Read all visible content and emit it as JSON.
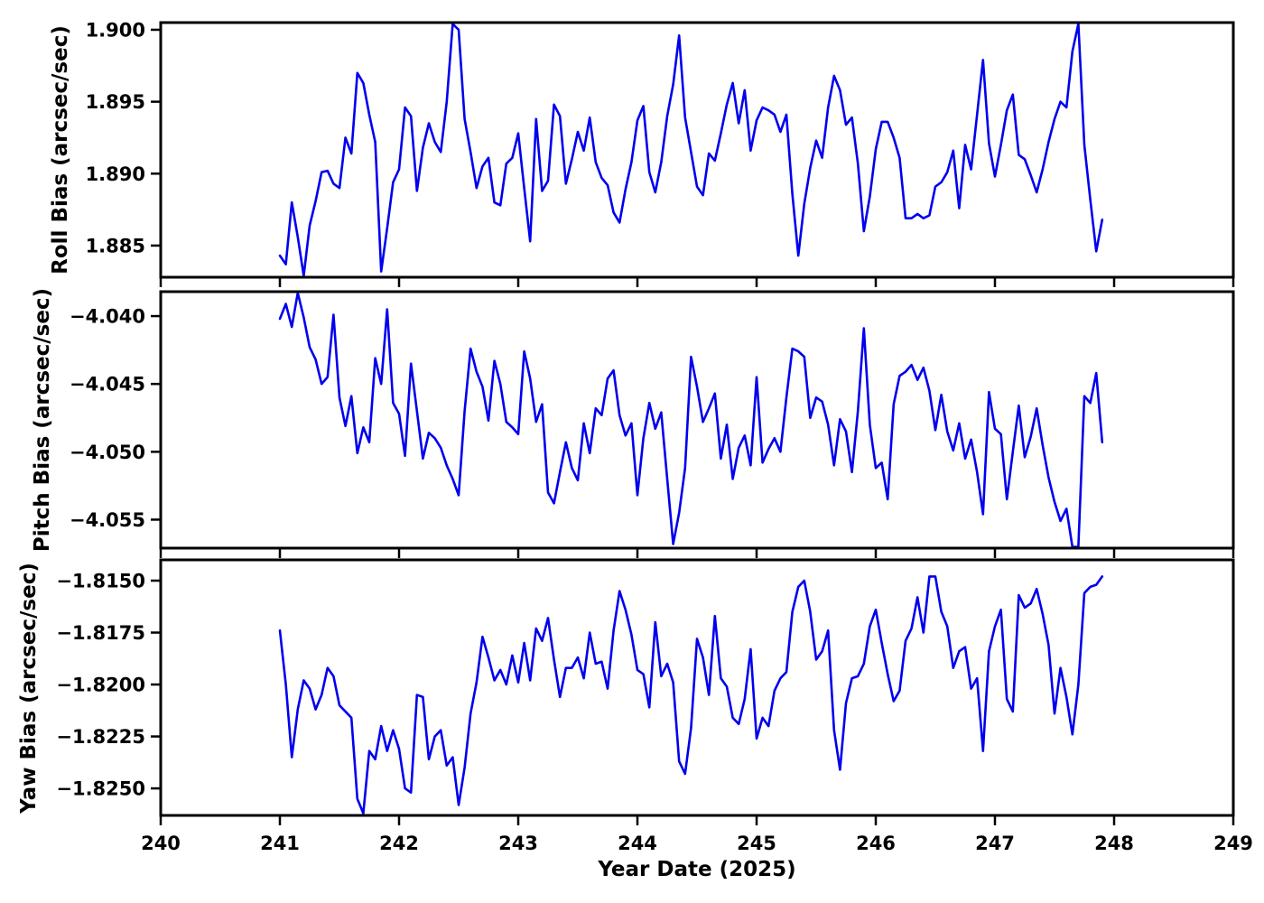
{
  "colors": {
    "line": "#0000ee",
    "axis": "#000000",
    "background": "#ffffff"
  },
  "x_axis": {
    "label": "Year Date (2025)",
    "xlim": [
      240,
      249
    ],
    "ticks": [
      240,
      241,
      242,
      243,
      244,
      245,
      246,
      247,
      248,
      249
    ],
    "tick_labels": [
      "240",
      "241",
      "242",
      "243",
      "244",
      "245",
      "246",
      "247",
      "248",
      "249"
    ]
  },
  "chart_data": [
    {
      "type": "line",
      "name": "roll-bias",
      "ylabel": "Roll Bias (arcsec/sec)",
      "ylim": [
        1.8828,
        1.9005
      ],
      "yticks": [
        1.885,
        1.89,
        1.895,
        1.9
      ],
      "ytick_labels": [
        "1.885",
        "1.890",
        "1.895",
        "1.900"
      ],
      "x_start": 241.0,
      "x_step": 0.05,
      "values": [
        1.8843,
        1.8837,
        1.888,
        1.8856,
        1.8829,
        1.8864,
        1.8881,
        1.8901,
        1.8902,
        1.8893,
        1.889,
        1.8925,
        1.8914,
        1.897,
        1.8963,
        1.8941,
        1.8922,
        1.8832,
        1.8862,
        1.8894,
        1.8903,
        1.8946,
        1.894,
        1.8888,
        1.8918,
        1.8935,
        1.8922,
        1.8915,
        1.895,
        1.9004,
        1.9,
        1.8938,
        1.8915,
        1.889,
        1.8905,
        1.8911,
        1.888,
        1.8878,
        1.8907,
        1.8911,
        1.8928,
        1.889,
        1.8853,
        1.8938,
        1.8888,
        1.8895,
        1.8948,
        1.894,
        1.8893,
        1.891,
        1.8929,
        1.8916,
        1.8939,
        1.8908,
        1.8897,
        1.8892,
        1.8873,
        1.8866,
        1.8889,
        1.8908,
        1.8937,
        1.8947,
        1.8901,
        1.8887,
        1.8908,
        1.894,
        1.8962,
        1.8996,
        1.8939,
        1.8915,
        1.8891,
        1.8885,
        1.8914,
        1.8909,
        1.8928,
        1.8948,
        1.8963,
        1.8935,
        1.8958,
        1.8916,
        1.8937,
        1.8946,
        1.8944,
        1.8941,
        1.8929,
        1.8941,
        1.8886,
        1.8843,
        1.8879,
        1.8904,
        1.8923,
        1.8911,
        1.8946,
        1.8968,
        1.8958,
        1.8934,
        1.8939,
        1.8907,
        1.886,
        1.8884,
        1.8917,
        1.8936,
        1.8936,
        1.8925,
        1.8911,
        1.8869,
        1.8869,
        1.8872,
        1.8869,
        1.8871,
        1.8891,
        1.8894,
        1.8901,
        1.8916,
        1.8876,
        1.892,
        1.8903,
        1.8941,
        1.8979,
        1.8921,
        1.8898,
        1.892,
        1.8944,
        1.8955,
        1.8913,
        1.891,
        1.8899,
        1.8887,
        1.8903,
        1.8922,
        1.8938,
        1.895,
        1.8946,
        1.8985,
        1.9005,
        1.892,
        1.8882,
        1.8846,
        1.8868
      ]
    },
    {
      "type": "line",
      "name": "pitch-bias",
      "ylabel": "Pitch Bias (arcsec/sec)",
      "ylim": [
        -4.0571,
        -4.0382
      ],
      "yticks": [
        -4.055,
        -4.05,
        -4.045,
        -4.04
      ],
      "ytick_labels": [
        "−4.055",
        "−4.050",
        "−4.045",
        "−4.040"
      ],
      "x_start": 241.0,
      "x_step": 0.05,
      "values": [
        -4.0402,
        -4.0391,
        -4.0408,
        -4.0382,
        -4.0401,
        -4.0423,
        -4.0432,
        -4.045,
        -4.0445,
        -4.0399,
        -4.046,
        -4.0481,
        -4.0459,
        -4.0501,
        -4.0482,
        -4.0493,
        -4.0431,
        -4.045,
        -4.0395,
        -4.0464,
        -4.0472,
        -4.0503,
        -4.0435,
        -4.047,
        -4.0505,
        -4.0486,
        -4.049,
        -4.0497,
        -4.051,
        -4.052,
        -4.0532,
        -4.047,
        -4.0424,
        -4.0441,
        -4.0452,
        -4.0477,
        -4.0433,
        -4.045,
        -4.0478,
        -4.0482,
        -4.0487,
        -4.0426,
        -4.0446,
        -4.0478,
        -4.0465,
        -4.053,
        -4.0538,
        -4.0515,
        -4.0493,
        -4.0512,
        -4.0521,
        -4.0479,
        -4.0501,
        -4.0468,
        -4.0473,
        -4.0446,
        -4.044,
        -4.0473,
        -4.0488,
        -4.0479,
        -4.0532,
        -4.049,
        -4.0464,
        -4.0483,
        -4.0471,
        -4.052,
        -4.0568,
        -4.0545,
        -4.0512,
        -4.043,
        -4.0452,
        -4.0478,
        -4.0468,
        -4.0457,
        -4.0505,
        -4.048,
        -4.052,
        -4.0497,
        -4.0488,
        -4.051,
        -4.0445,
        -4.0508,
        -4.0498,
        -4.049,
        -4.05,
        -4.046,
        -4.0424,
        -4.0426,
        -4.043,
        -4.0475,
        -4.046,
        -4.0463,
        -4.048,
        -4.051,
        -4.0476,
        -4.0485,
        -4.0515,
        -4.047,
        -4.0409,
        -4.048,
        -4.0512,
        -4.0508,
        -4.0535,
        -4.0465,
        -4.0444,
        -4.0441,
        -4.0436,
        -4.0447,
        -4.0438,
        -4.0455,
        -4.0484,
        -4.0458,
        -4.0485,
        -4.0499,
        -4.0479,
        -4.0505,
        -4.0491,
        -4.0515,
        -4.0546,
        -4.0456,
        -4.0483,
        -4.0487,
        -4.0535,
        -4.05,
        -4.0466,
        -4.0504,
        -4.0489,
        -4.0468,
        -4.0495,
        -4.0519,
        -4.0537,
        -4.0551,
        -4.0542,
        -4.0572,
        -4.057,
        -4.0459,
        -4.0464,
        -4.0442,
        -4.0493
      ]
    },
    {
      "type": "line",
      "name": "yaw-bias",
      "ylabel": "Yaw Bias (arcsec/sec)",
      "ylim": [
        -1.8263,
        -1.814
      ],
      "yticks": [
        -1.825,
        -1.8225,
        -1.82,
        -1.8175,
        -1.815
      ],
      "ytick_labels": [
        "−1.8250",
        "−1.8225",
        "−1.8200",
        "−1.8175",
        "−1.8150"
      ],
      "x_start": 241.0,
      "x_step": 0.05,
      "values": [
        -1.8174,
        -1.82,
        -1.8235,
        -1.8212,
        -1.8198,
        -1.8202,
        -1.8212,
        -1.8205,
        -1.8192,
        -1.8196,
        -1.821,
        -1.8213,
        -1.8216,
        -1.8255,
        -1.8262,
        -1.8232,
        -1.8236,
        -1.822,
        -1.8232,
        -1.8222,
        -1.8231,
        -1.825,
        -1.8252,
        -1.8205,
        -1.8206,
        -1.8236,
        -1.8225,
        -1.8222,
        -1.8239,
        -1.8235,
        -1.8258,
        -1.824,
        -1.8214,
        -1.8199,
        -1.8177,
        -1.8187,
        -1.8198,
        -1.8193,
        -1.82,
        -1.8186,
        -1.8199,
        -1.818,
        -1.8198,
        -1.8173,
        -1.8179,
        -1.8168,
        -1.8188,
        -1.8206,
        -1.8192,
        -1.8192,
        -1.8187,
        -1.8197,
        -1.8175,
        -1.819,
        -1.8189,
        -1.8202,
        -1.8174,
        -1.8155,
        -1.8164,
        -1.8176,
        -1.8193,
        -1.8195,
        -1.8211,
        -1.817,
        -1.8196,
        -1.819,
        -1.8199,
        -1.8237,
        -1.8243,
        -1.8221,
        -1.8178,
        -1.8187,
        -1.8205,
        -1.8167,
        -1.8197,
        -1.8201,
        -1.8216,
        -1.8219,
        -1.8207,
        -1.8183,
        -1.8226,
        -1.8216,
        -1.822,
        -1.8203,
        -1.8197,
        -1.8194,
        -1.8165,
        -1.8153,
        -1.815,
        -1.8165,
        -1.8188,
        -1.8184,
        -1.8174,
        -1.8222,
        -1.8241,
        -1.8209,
        -1.8197,
        -1.8196,
        -1.819,
        -1.8172,
        -1.8164,
        -1.818,
        -1.8195,
        -1.8208,
        -1.8203,
        -1.8179,
        -1.8173,
        -1.8158,
        -1.8175,
        -1.8148,
        -1.8148,
        -1.8165,
        -1.8172,
        -1.8192,
        -1.8184,
        -1.8182,
        -1.8202,
        -1.8197,
        -1.8232,
        -1.8184,
        -1.8172,
        -1.8164,
        -1.8207,
        -1.8213,
        -1.8157,
        -1.8163,
        -1.8161,
        -1.8154,
        -1.8166,
        -1.8181,
        -1.8214,
        -1.8192,
        -1.8206,
        -1.8224,
        -1.82,
        -1.8156,
        -1.8153,
        -1.8152,
        -1.8148
      ]
    }
  ]
}
